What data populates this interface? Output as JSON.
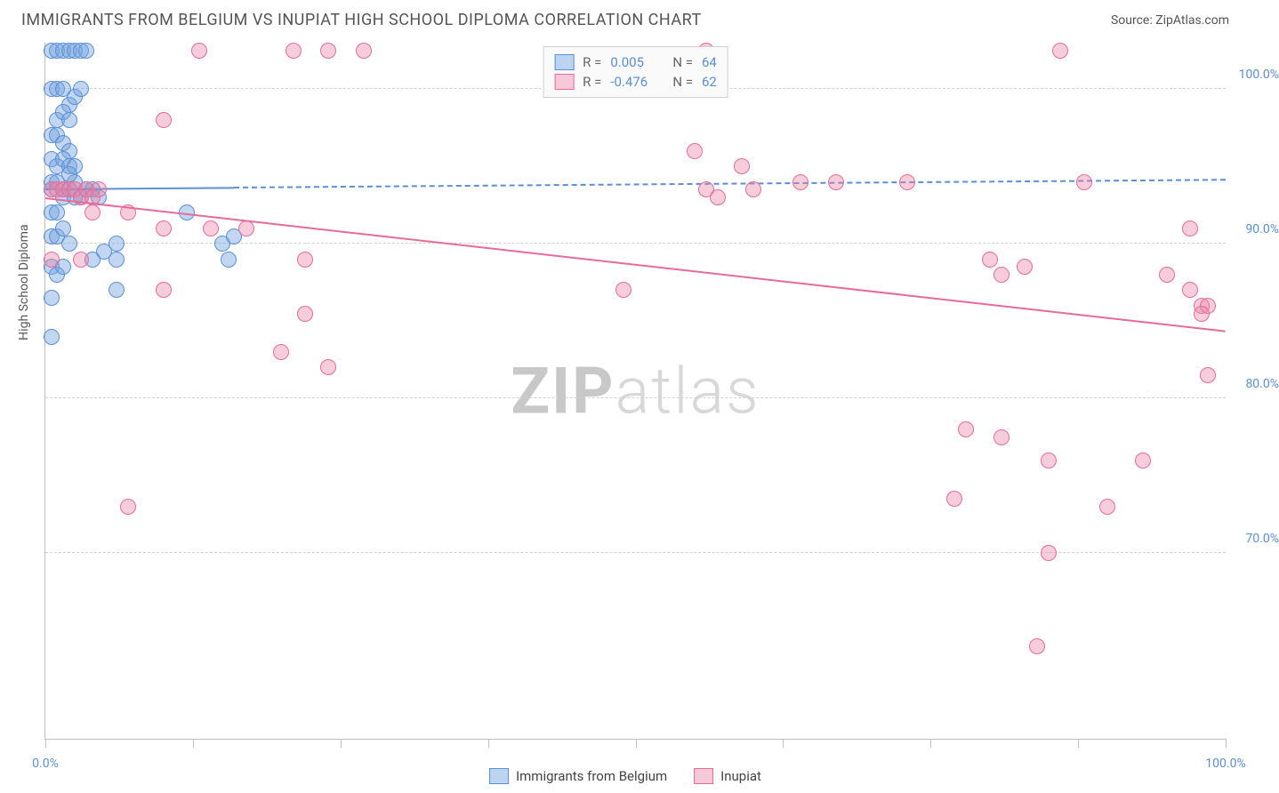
{
  "header": {
    "title": "IMMIGRANTS FROM BELGIUM VS INUPIAT HIGH SCHOOL DIPLOMA CORRELATION CHART",
    "source": "Source: ZipAtlas.com"
  },
  "watermark": {
    "bold": "ZIP",
    "light": "atlas"
  },
  "chart": {
    "type": "scatter",
    "y_axis_label": "High School Diploma",
    "xlim": [
      0,
      100
    ],
    "ylim": [
      58,
      103
    ],
    "x_ticks": [
      0,
      12.5,
      25,
      37.5,
      50,
      62.5,
      75,
      87.5,
      100
    ],
    "x_tick_labels": {
      "0": "0.0%",
      "100": "100.0%"
    },
    "y_ticks": [
      70,
      80,
      90,
      100
    ],
    "y_tick_labels": {
      "70": "70.0%",
      "80": "80.0%",
      "90": "90.0%",
      "100": "100.0%"
    },
    "grid_color": "#d0d0d0",
    "background": "#ffffff",
    "point_radius": 9,
    "series": [
      {
        "name": "Immigrants from Belgium",
        "color_fill": "rgba(117,164,222,0.45)",
        "color_stroke": "#5b8fd6",
        "swatch_fill": "#bcd4ef",
        "r": "0.005",
        "n": "64",
        "trend": {
          "y_start": 93.6,
          "y_end": 94.2,
          "solid_until_x": 16
        },
        "points": [
          [
            0.5,
            102.5
          ],
          [
            1,
            102.5
          ],
          [
            1.5,
            102.5
          ],
          [
            2,
            102.5
          ],
          [
            2.5,
            102.5
          ],
          [
            3,
            102.5
          ],
          [
            3.5,
            102.5
          ],
          [
            0.5,
            100
          ],
          [
            1,
            100
          ],
          [
            1.5,
            100
          ],
          [
            2,
            99
          ],
          [
            2.5,
            99.5
          ],
          [
            3,
            100
          ],
          [
            1,
            98
          ],
          [
            1.5,
            98.5
          ],
          [
            2,
            98
          ],
          [
            0.5,
            97
          ],
          [
            1,
            97
          ],
          [
            1.5,
            96.5
          ],
          [
            2,
            96
          ],
          [
            0.5,
            95.5
          ],
          [
            1,
            95
          ],
          [
            1.5,
            95.5
          ],
          [
            2,
            95
          ],
          [
            2.5,
            95
          ],
          [
            0.5,
            94
          ],
          [
            1,
            94
          ],
          [
            1.5,
            93.5
          ],
          [
            2,
            93.5
          ],
          [
            2.5,
            94
          ],
          [
            3,
            93
          ],
          [
            3.5,
            93.5
          ],
          [
            4,
            93.5
          ],
          [
            4.5,
            93
          ],
          [
            0.5,
            92
          ],
          [
            1,
            92
          ],
          [
            1.5,
            93
          ],
          [
            2.5,
            93
          ],
          [
            0.5,
            93.5
          ],
          [
            2,
            94.5
          ],
          [
            0.5,
            90.5
          ],
          [
            1,
            90.5
          ],
          [
            1.5,
            91
          ],
          [
            2,
            90
          ],
          [
            5,
            89.5
          ],
          [
            6,
            90
          ],
          [
            0.5,
            88.5
          ],
          [
            1,
            88
          ],
          [
            1.5,
            88.5
          ],
          [
            4,
            89
          ],
          [
            6,
            89
          ],
          [
            0.5,
            86.5
          ],
          [
            6,
            87
          ],
          [
            0.5,
            84
          ],
          [
            12,
            92
          ],
          [
            15,
            90
          ],
          [
            15.5,
            89
          ],
          [
            16,
            90.5
          ]
        ]
      },
      {
        "name": "Inupiat",
        "color_fill": "rgba(236,130,165,0.40)",
        "color_stroke": "#e76b9a",
        "swatch_fill": "#f6c9d9",
        "r": "-0.476",
        "n": "62",
        "trend": {
          "y_start": 93.0,
          "y_end": 84.4,
          "solid_until_x": 100
        },
        "points": [
          [
            0.5,
            93.5
          ],
          [
            1,
            93.5
          ],
          [
            1.5,
            93.5
          ],
          [
            2,
            93.5
          ],
          [
            2.5,
            93.5
          ],
          [
            3,
            93
          ],
          [
            3.5,
            93.5
          ],
          [
            4,
            93
          ],
          [
            4.5,
            93.5
          ],
          [
            13,
            102.5
          ],
          [
            21,
            102.5
          ],
          [
            24,
            102.5
          ],
          [
            27,
            102.5
          ],
          [
            10,
            98
          ],
          [
            4,
            92
          ],
          [
            7,
            92
          ],
          [
            10,
            91
          ],
          [
            14,
            91
          ],
          [
            17,
            91
          ],
          [
            0.5,
            89
          ],
          [
            3,
            89
          ],
          [
            10,
            87
          ],
          [
            22,
            89
          ],
          [
            22,
            85.5
          ],
          [
            7,
            73
          ],
          [
            20,
            83
          ],
          [
            24,
            82
          ],
          [
            49,
            87
          ],
          [
            56,
            102.5
          ],
          [
            56,
            93.5
          ],
          [
            57,
            93
          ],
          [
            60,
            93.5
          ],
          [
            55,
            96
          ],
          [
            59,
            95
          ],
          [
            64,
            94
          ],
          [
            67,
            94
          ],
          [
            80,
            89
          ],
          [
            83,
            88.5
          ],
          [
            81,
            88
          ],
          [
            73,
            94
          ],
          [
            78,
            78
          ],
          [
            81,
            77.5
          ],
          [
            77,
            73.5
          ],
          [
            86,
            102.5
          ],
          [
            88,
            94
          ],
          [
            85,
            76
          ],
          [
            90,
            73
          ],
          [
            85,
            70
          ],
          [
            84,
            64
          ],
          [
            97,
            91
          ],
          [
            97,
            87
          ],
          [
            98,
            86
          ],
          [
            98.5,
            86
          ],
          [
            98,
            85.5
          ],
          [
            95,
            88
          ],
          [
            98.5,
            81.5
          ],
          [
            93,
            76
          ]
        ]
      }
    ]
  },
  "legend": {
    "r_label": "R =",
    "n_label": "N ="
  }
}
